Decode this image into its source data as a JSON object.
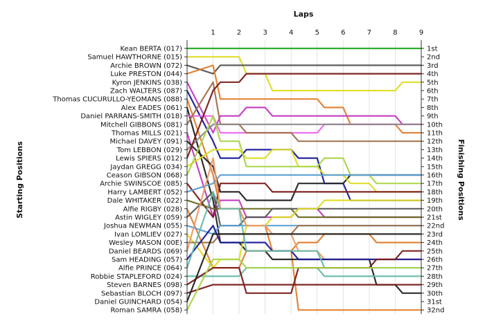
{
  "chart_data": {
    "type": "line",
    "title": "Laps",
    "ylabel_left": "Starting Positions",
    "ylabel_right": "Finishing Positions",
    "x": [
      0,
      1,
      2,
      3,
      4,
      5,
      6,
      7,
      8,
      9
    ],
    "xticks": [
      "1",
      "2",
      "3",
      "4",
      "5",
      "6",
      "7",
      "8",
      "9"
    ],
    "starting_positions": [
      "Kean BERTA (017)",
      "Samuel HAWTHORNE (015)",
      "Archie BROWN (072)",
      "Luke PRESTON (044)",
      "Kyron JENKINS (038)",
      "Zach WALTERS (087)",
      "Thomas CUCURULLO-YEOMANS (088)",
      "Alex EADES (061)",
      "Daniel PARRANS-SMITH (018)",
      "Mitchell GIBBONS (081)",
      "Thomas MILLS (021)",
      "Michael DAVEY (091)",
      "Tom LEBBON (029)",
      "Lewis SPIERS (012)",
      "Jaydan GREGG (034)",
      "Ceason GIBSON (068)",
      "Archie SWINSCOE (085)",
      "Harry LAMBERT (052)",
      "Dale WHITAKER (022)",
      "Alfie RIGBY (028)",
      "Astin WIGLEY (059)",
      "Joshua NEWMAN (055)",
      "Ivan LOMLIEV (027)",
      "Wesley MASON (00E)",
      "Daniel BEARDS (069)",
      "Sam HEADING (057)",
      "Alfie PRINCE (064)",
      "Robbie STAPLEFORD (024)",
      "Steven BARNES (098)",
      "Sebastian BLOCH (097)",
      "Daniel GUINCHARD (054)",
      "Roman SAMRA (058)"
    ],
    "finishing_positions": [
      "1st",
      "2nd",
      "3rd",
      "4th",
      "5th",
      "6th",
      "7th",
      "8th",
      "9th",
      "10th",
      "11th",
      "12th",
      "13th",
      "14th",
      "15th",
      "16th",
      "17th",
      "18th",
      "19th",
      "20th",
      "21st",
      "22nd",
      "23rd",
      "24th",
      "25th",
      "26th",
      "27th",
      "28th",
      "29th",
      "30th",
      "31st",
      "32nd"
    ],
    "series": [
      {
        "color": "#22aa22",
        "values": [
          1,
          1,
          1,
          1,
          1,
          1,
          1,
          1,
          1,
          1
        ]
      },
      {
        "color": "#dddd22",
        "values": [
          2,
          2,
          2,
          4,
          6,
          6,
          6,
          6,
          6,
          5
        ]
      },
      {
        "color": "#555555",
        "values": [
          3,
          4,
          3,
          3,
          3,
          3,
          3,
          3,
          3,
          3
        ]
      },
      {
        "color": "#e07e2e",
        "values": [
          4,
          3,
          7,
          7,
          7,
          7,
          8,
          10,
          10,
          11
        ]
      },
      {
        "color": "#c33cc3",
        "values": [
          5,
          11,
          9,
          8,
          9,
          9,
          9,
          9,
          9,
          10
        ]
      },
      {
        "color": "#1a1a99",
        "values": [
          6,
          12,
          14,
          13,
          13,
          14,
          17,
          19,
          19,
          19
        ]
      },
      {
        "color": "#e07e2e",
        "values": [
          7,
          16,
          20,
          22,
          25,
          32,
          32,
          32,
          32,
          32
        ]
      },
      {
        "color": "#222222",
        "values": [
          8,
          19,
          24,
          25,
          26,
          26,
          26,
          26,
          29,
          30
        ]
      },
      {
        "color": "#ee66ee",
        "values": [
          9,
          9,
          11,
          11,
          11,
          11,
          10,
          10,
          10,
          10
        ]
      },
      {
        "color": "#a0704a",
        "values": [
          10,
          5,
          10,
          11,
          11,
          12,
          12,
          12,
          12,
          12
        ]
      },
      {
        "color": "#c33cc3",
        "values": [
          11,
          21,
          19,
          21,
          21,
          20,
          21,
          21,
          21,
          21
        ]
      },
      {
        "color": "#222222",
        "values": [
          12,
          15,
          18,
          19,
          19,
          17,
          17,
          16,
          16,
          16
        ]
      },
      {
        "color": "#888888",
        "values": [
          13,
          10,
          10,
          10,
          10,
          10,
          10,
          10,
          10,
          10
        ]
      },
      {
        "color": "#7a1a1a",
        "values": [
          14,
          6,
          5,
          4,
          4,
          4,
          4,
          4,
          4,
          4
        ]
      },
      {
        "color": "#dddd22",
        "values": [
          15,
          13,
          13,
          14,
          13,
          15,
          16,
          17,
          18,
          18
        ]
      },
      {
        "color": "#aad44a",
        "values": [
          16,
          9,
          12,
          15,
          15,
          15,
          14,
          16,
          17,
          17
        ]
      },
      {
        "color": "#7a1a1a",
        "values": [
          17,
          21,
          17,
          17,
          18,
          18,
          18,
          18,
          18,
          18
        ]
      },
      {
        "color": "#5a9fd4",
        "values": [
          18,
          17,
          16,
          16,
          16,
          16,
          16,
          16,
          16,
          16
        ]
      },
      {
        "color": "#6a6a22",
        "values": [
          19,
          20,
          20,
          20,
          20,
          21,
          21,
          21,
          21,
          21
        ]
      },
      {
        "color": "#e07e2e",
        "values": [
          20,
          27,
          27,
          25,
          25,
          24,
          23,
          23,
          24,
          24
        ]
      },
      {
        "color": "#555555",
        "values": [
          21,
          18,
          22,
          21,
          20,
          20,
          20,
          20,
          20,
          20
        ]
      },
      {
        "color": "#5a9fd4",
        "values": [
          22,
          23,
          22,
          22,
          22,
          22,
          22,
          22,
          22,
          22
        ]
      },
      {
        "color": "#dddd22",
        "values": [
          23,
          27,
          26,
          22,
          21,
          20,
          19,
          19,
          19,
          19
        ]
      },
      {
        "color": "#a0704a",
        "values": [
          24,
          24,
          23,
          23,
          23,
          22,
          22,
          22,
          22,
          22
        ]
      },
      {
        "color": "#ee9966",
        "values": [
          25,
          14,
          20,
          22,
          23,
          25,
          26,
          26,
          26,
          26
        ]
      },
      {
        "color": "#1a1a99",
        "values": [
          26,
          22,
          24,
          24,
          25,
          26,
          26,
          26,
          26,
          26
        ]
      },
      {
        "color": "#66bbaa",
        "values": [
          27,
          18,
          20,
          25,
          25,
          25,
          27,
          27,
          27,
          27
        ]
      },
      {
        "color": "#66bbaa",
        "values": [
          28,
          28,
          28,
          27,
          27,
          27,
          28,
          28,
          28,
          28
        ]
      },
      {
        "color": "#7a1a1a",
        "values": [
          29,
          27,
          27,
          30,
          30,
          27,
          27,
          27,
          26,
          25
        ]
      },
      {
        "color": "#7a1a1a",
        "values": [
          30,
          29,
          29,
          29,
          29,
          29,
          29,
          29,
          29,
          29
        ]
      },
      {
        "color": "#222222",
        "values": [
          31,
          23,
          23,
          23,
          23,
          23,
          23,
          23,
          23,
          23
        ]
      },
      {
        "color": "#aad44a",
        "values": [
          32,
          26,
          26,
          27,
          27,
          27,
          27,
          27,
          27,
          27
        ]
      }
    ]
  }
}
